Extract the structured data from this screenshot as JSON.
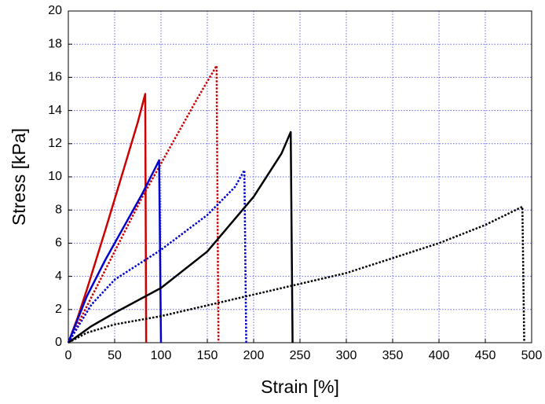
{
  "chart_data": {
    "type": "line",
    "xlabel": "Strain [%]",
    "ylabel": "Stress [kPa]",
    "xlim": [
      0,
      500
    ],
    "xticks": [
      0,
      50,
      100,
      150,
      200,
      250,
      300,
      350,
      400,
      450,
      500
    ],
    "ylim": [
      0,
      20
    ],
    "yticks": [
      0,
      2,
      4,
      6,
      8,
      10,
      12,
      14,
      16,
      18,
      20
    ],
    "grid": true,
    "series": [
      {
        "color": "#cc0000",
        "dash": "solid",
        "x": [
          0,
          10,
          20,
          40,
          60,
          75,
          83,
          84
        ],
        "values": [
          0,
          1.5,
          3.2,
          6.8,
          10.5,
          13.3,
          15,
          0
        ]
      },
      {
        "color": "#cc0000",
        "dash": "dotted",
        "x": [
          0,
          20,
          50,
          80,
          110,
          140,
          160,
          162
        ],
        "values": [
          0,
          2.2,
          5.5,
          8.8,
          11.8,
          14.8,
          16.7,
          0
        ]
      },
      {
        "color": "#0000cc",
        "dash": "solid",
        "x": [
          0,
          20,
          40,
          60,
          80,
          98,
          100
        ],
        "values": [
          0,
          2.8,
          5,
          7,
          9,
          11,
          0
        ]
      },
      {
        "color": "#0000cc",
        "dash": "dotted",
        "x": [
          0,
          25,
          50,
          100,
          150,
          180,
          190,
          192
        ],
        "values": [
          0,
          2.3,
          3.8,
          5.6,
          7.7,
          9.4,
          10.4,
          0
        ]
      },
      {
        "color": "#000000",
        "dash": "solid",
        "x": [
          0,
          25,
          50,
          100,
          150,
          200,
          230,
          240,
          242
        ],
        "values": [
          0,
          1,
          1.8,
          3.3,
          5.5,
          8.8,
          11.4,
          12.7,
          0
        ]
      },
      {
        "color": "#000000",
        "dash": "dotted",
        "x": [
          0,
          20,
          50,
          100,
          200,
          300,
          400,
          450,
          490,
          492
        ],
        "values": [
          0,
          0.6,
          1.1,
          1.6,
          2.9,
          4.2,
          6,
          7.1,
          8.2,
          0
        ]
      }
    ]
  }
}
